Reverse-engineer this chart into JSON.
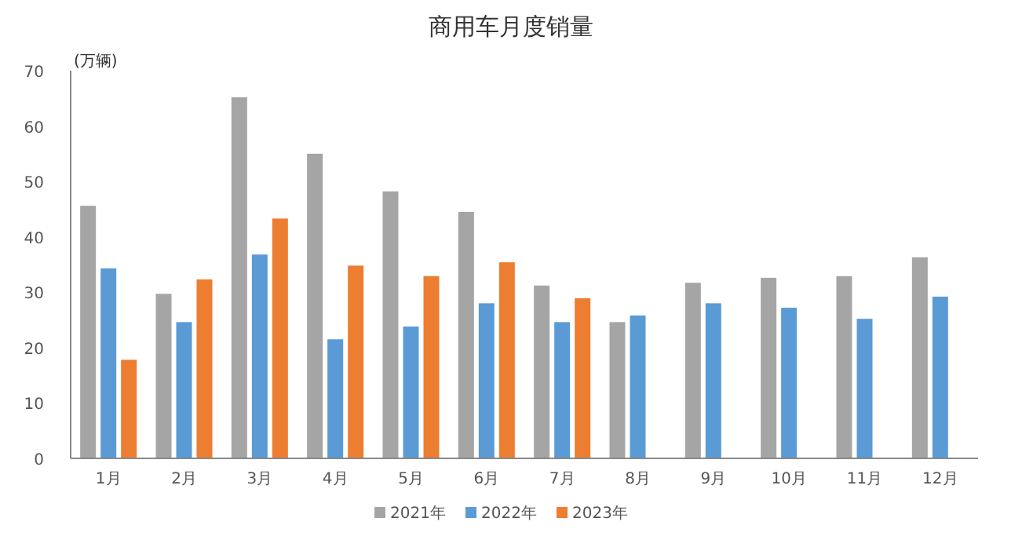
{
  "chart_data": {
    "type": "bar",
    "title": "商用车月度销量",
    "ylabel": "(万辆)",
    "categories": [
      "1月",
      "2月",
      "3月",
      "4月",
      "5月",
      "6月",
      "7月",
      "8月",
      "9月",
      "10月",
      "11月",
      "12月"
    ],
    "series": [
      {
        "name": "2021年",
        "color": "#a5a5a5",
        "values": [
          45.6,
          29.7,
          65.2,
          55.0,
          48.2,
          44.5,
          31.2,
          24.6,
          31.7,
          32.6,
          32.9,
          36.3
        ]
      },
      {
        "name": "2022年",
        "color": "#5b9bd5",
        "values": [
          34.3,
          24.6,
          36.8,
          21.5,
          23.8,
          28.0,
          24.6,
          25.8,
          28.0,
          27.2,
          25.2,
          29.2
        ]
      },
      {
        "name": "2023年",
        "color": "#ed7d31",
        "values": [
          17.8,
          32.3,
          43.3,
          34.8,
          32.9,
          35.4,
          28.9,
          null,
          null,
          null,
          null,
          null
        ]
      }
    ],
    "ylim": [
      0,
      70
    ],
    "yticks": [
      0,
      10,
      20,
      30,
      40,
      50,
      60,
      70
    ],
    "grid": false,
    "legend": "bottom"
  }
}
